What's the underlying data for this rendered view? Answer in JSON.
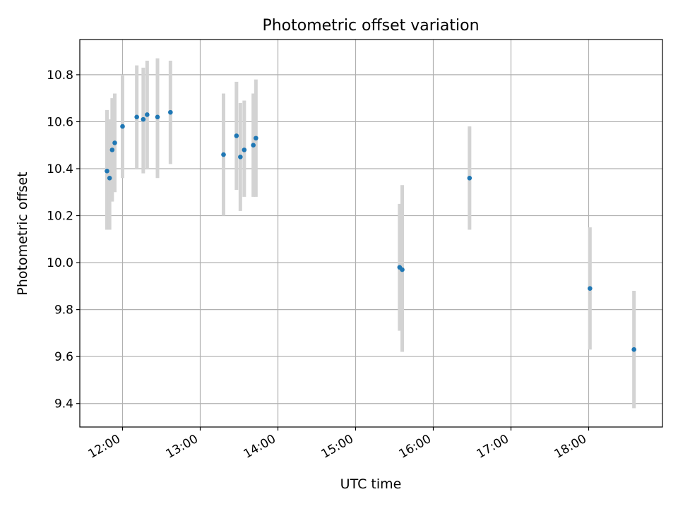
{
  "chart_data": {
    "type": "scatter",
    "title": "Photometric offset variation",
    "xlabel": "UTC time",
    "ylabel": "Photometric offset",
    "xlim": [
      "11:27",
      "18:57"
    ],
    "ylim": [
      9.3,
      10.95
    ],
    "grid": true,
    "xticks": [
      "12:00",
      "13:00",
      "14:00",
      "15:00",
      "16:00",
      "17:00",
      "18:00"
    ],
    "yticks": [
      "9.4",
      "9.6",
      "9.8",
      "10.0",
      "10.2",
      "10.4",
      "10.6",
      "10.8"
    ],
    "marker_color": "#1f77b4",
    "errorbar_color": "#d3d3d3",
    "points": [
      {
        "time": "11:48",
        "y": 10.39,
        "err_low": 10.14,
        "err_high": 10.65
      },
      {
        "time": "11:50",
        "y": 10.36,
        "err_low": 10.14,
        "err_high": 10.61
      },
      {
        "time": "11:52",
        "y": 10.48,
        "err_low": 10.26,
        "err_high": 10.7
      },
      {
        "time": "11:54",
        "y": 10.51,
        "err_low": 10.3,
        "err_high": 10.72
      },
      {
        "time": "12:00",
        "y": 10.58,
        "err_low": 10.36,
        "err_high": 10.8
      },
      {
        "time": "12:11",
        "y": 10.62,
        "err_low": 10.4,
        "err_high": 10.84
      },
      {
        "time": "12:16",
        "y": 10.61,
        "err_low": 10.38,
        "err_high": 10.83
      },
      {
        "time": "12:19",
        "y": 10.63,
        "err_low": 10.4,
        "err_high": 10.86
      },
      {
        "time": "12:27",
        "y": 10.62,
        "err_low": 10.36,
        "err_high": 10.87
      },
      {
        "time": "12:37",
        "y": 10.64,
        "err_low": 10.42,
        "err_high": 10.86
      },
      {
        "time": "13:18",
        "y": 10.46,
        "err_low": 10.2,
        "err_high": 10.72
      },
      {
        "time": "13:28",
        "y": 10.54,
        "err_low": 10.31,
        "err_high": 10.77
      },
      {
        "time": "13:31",
        "y": 10.45,
        "err_low": 10.22,
        "err_high": 10.68
      },
      {
        "time": "13:34",
        "y": 10.48,
        "err_low": 10.28,
        "err_high": 10.69
      },
      {
        "time": "13:41",
        "y": 10.5,
        "err_low": 10.28,
        "err_high": 10.72
      },
      {
        "time": "13:43",
        "y": 10.53,
        "err_low": 10.28,
        "err_high": 10.78
      },
      {
        "time": "15:34",
        "y": 9.98,
        "err_low": 9.71,
        "err_high": 10.25
      },
      {
        "time": "15:36",
        "y": 9.97,
        "err_low": 9.62,
        "err_high": 10.33
      },
      {
        "time": "16:28",
        "y": 10.36,
        "err_low": 10.14,
        "err_high": 10.58
      },
      {
        "time": "18:01",
        "y": 9.89,
        "err_low": 9.63,
        "err_high": 10.15
      },
      {
        "time": "18:35",
        "y": 9.63,
        "err_low": 9.38,
        "err_high": 9.88
      }
    ]
  }
}
